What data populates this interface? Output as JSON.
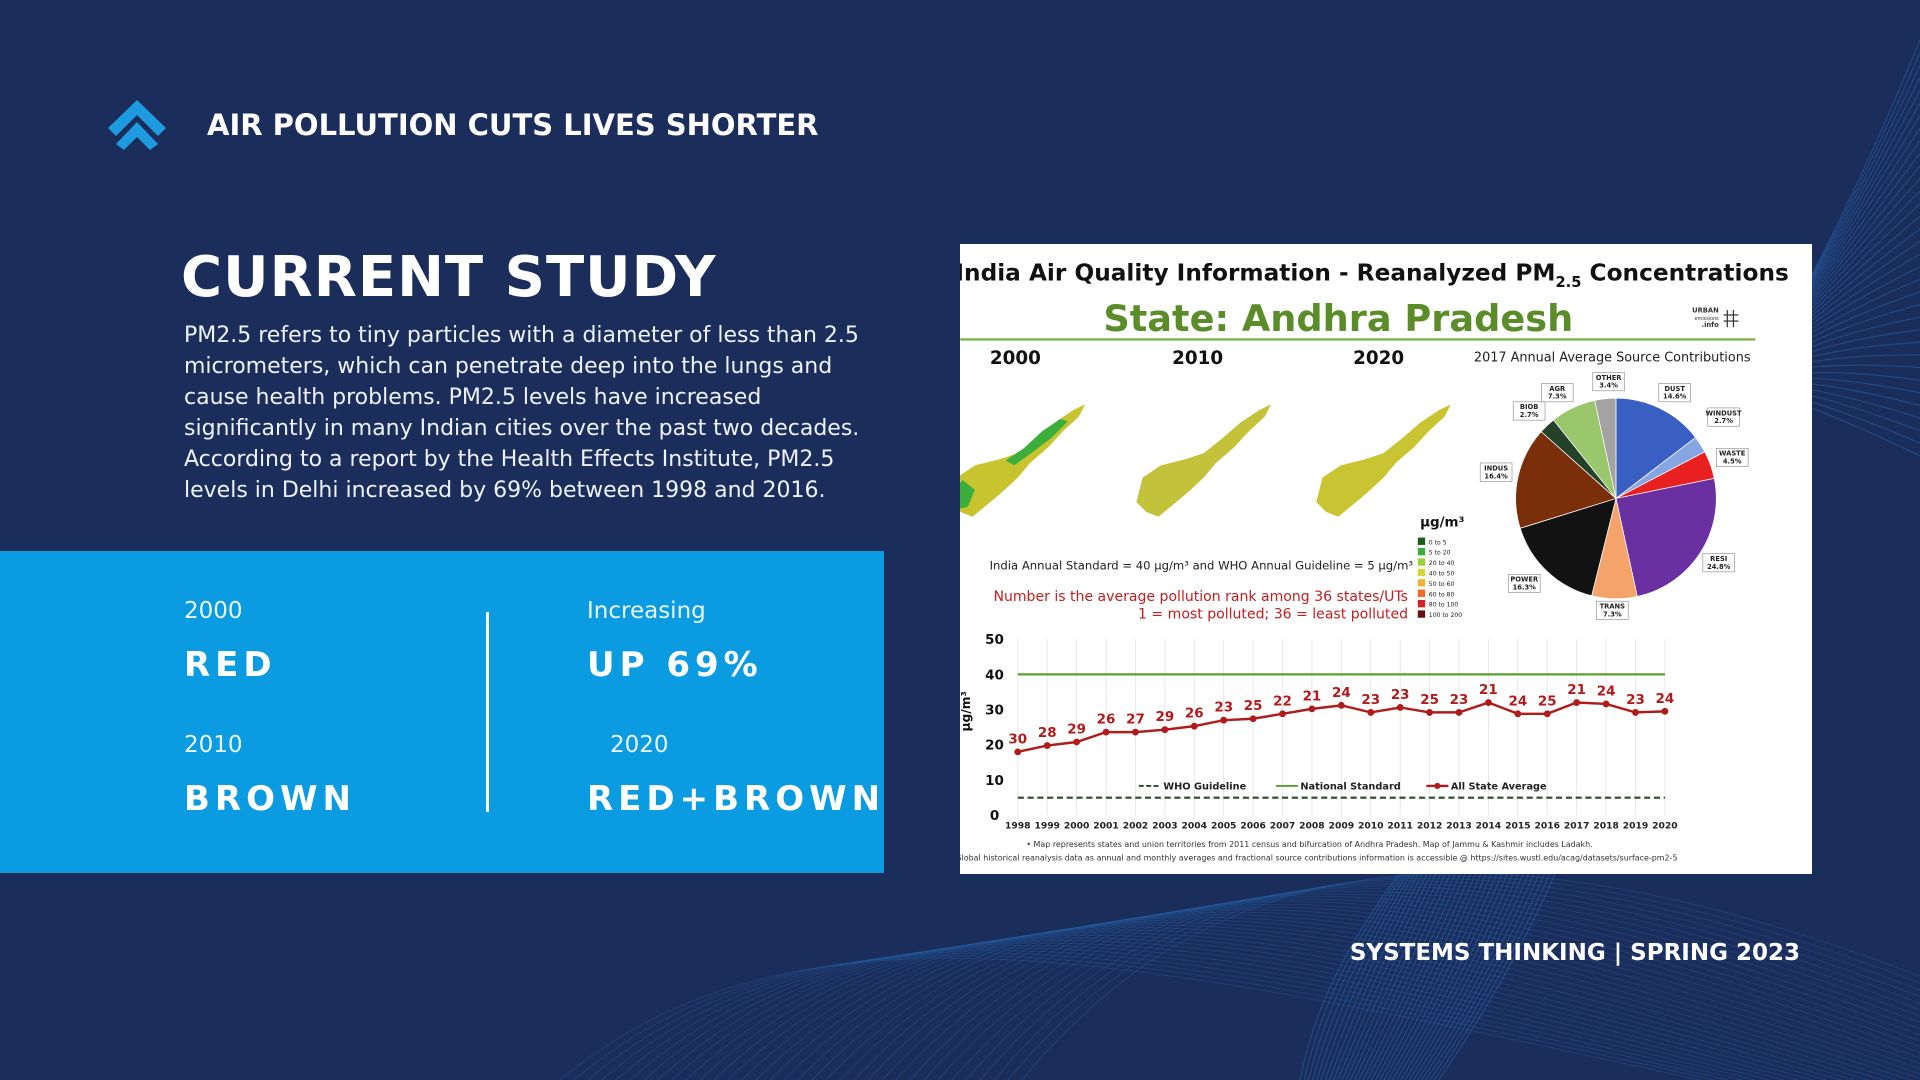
{
  "header": {
    "title": "AIR POLLUTION CUTS LIVES SHORTER"
  },
  "study": {
    "title": "CURRENT STUDY",
    "body_lines": [
      "PM2.5 refers to tiny particles with a diameter of less than 2.5",
      "micrometers, which can penetrate deep into the lungs and",
      "cause health problems. PM2.5 levels have increased",
      "significantly in many Indian cities over the past two decades.",
      "According to a report by the Health Effects Institute, PM2.5",
      "levels in Delhi increased by 69% between 1998 and 2016."
    ]
  },
  "stats": [
    {
      "label": "2000",
      "value": "RED"
    },
    {
      "label": "Increasing",
      "value": "UP 69%"
    },
    {
      "label": "2010",
      "value": "BROWN"
    },
    {
      "label": "2020",
      "value": "RED+BROWN"
    }
  ],
  "figure": {
    "title_pre": "India Air Quality Information - Reanalyzed PM",
    "title_sub": "2.5",
    "title_post": " Concentrations",
    "state": "State: Andhra Pradesh",
    "logo": [
      "URBAN",
      "emissions",
      ".info"
    ],
    "map_years": [
      "2000",
      "2010",
      "2020"
    ],
    "map_legend": {
      "title": "µg/m³",
      "bins": [
        "0 to 5",
        "5 to 20",
        "20 to 40",
        "40 to 50",
        "50 to 60",
        "60 to 80",
        "80 to 100",
        "100 to 200"
      ],
      "colors": [
        "#1f5a1f",
        "#3cae3c",
        "#9ccf3c",
        "#d6d63a",
        "#f2b233",
        "#f06a23",
        "#d61f1f",
        "#6b1010"
      ]
    },
    "standard_note": "India Annual Standard = 40 µg/m³ and WHO Annual Guideline = 5 µg/m³",
    "rank_note": [
      "Number is the average pollution rank among 36 states/UTs",
      "1 = most polluted; 36 = least polluted"
    ],
    "footnotes": [
      "•  Map represents states and union territories from 2011 census and bifurcation of Andhra Pradesh. Map of Jammu & Kashmir includes Ladakh.",
      "Global historical reanalysis data as annual and monthly averages and fractional source contributions information is accessible @ https://sites.wustl.edu/acag/datasets/surface-pm2-5"
    ]
  },
  "chart_data": [
    {
      "type": "pie",
      "title": "2017 Annual Average Source Contributions",
      "categories": [
        "DUST",
        "WINDUST",
        "WASTE",
        "RESI",
        "TRANS",
        "POWER",
        "INDUS",
        "BIOB",
        "AGR",
        "OTHER"
      ],
      "values": [
        14.6,
        2.7,
        4.5,
        24.8,
        7.3,
        16.3,
        16.4,
        2.7,
        7.3,
        3.4
      ],
      "value_labels": [
        "14.6%",
        "2.7%",
        "4.5%",
        "24.8%",
        "7.3%",
        "16.3%",
        "16.4%",
        "2.7%",
        "7.3%",
        "3.4%"
      ],
      "colors": [
        "#3a5fc2",
        "#85a6e3",
        "#e8201f",
        "#6a2fa0",
        "#f4a46a",
        "#121212",
        "#7a2e0a",
        "#24412a",
        "#9ac66c",
        "#a3a3a3"
      ]
    },
    {
      "type": "line",
      "ylabel": "µg/m³",
      "x": [
        1998,
        1999,
        2000,
        2001,
        2002,
        2003,
        2004,
        2005,
        2006,
        2007,
        2008,
        2009,
        2010,
        2011,
        2012,
        2013,
        2014,
        2015,
        2016,
        2017,
        2018,
        2019,
        2020
      ],
      "xlim": [
        1998,
        2020
      ],
      "xticks": [
        1998,
        1999,
        2000,
        2001,
        2002,
        2003,
        2004,
        2005,
        2006,
        2007,
        2008,
        2009,
        2010,
        2011,
        2012,
        2013,
        2014,
        2015,
        2016,
        2017,
        2018,
        2019,
        2020
      ],
      "ylim": [
        0,
        50
      ],
      "yticks": [
        0,
        10,
        20,
        30,
        40,
        50
      ],
      "series": [
        {
          "name": "All State Average",
          "color": "#b01c1c",
          "values": [
            18,
            19.8,
            20.8,
            23.6,
            23.6,
            24.3,
            25.3,
            27,
            27.4,
            28.8,
            30.2,
            31.2,
            29.2,
            30.6,
            29.2,
            29.2,
            32,
            28.8,
            28.8,
            32,
            31.6,
            29.2,
            29.5
          ],
          "ranks": [
            30,
            28,
            29,
            26,
            27,
            29,
            26,
            23,
            25,
            22,
            21,
            24,
            23,
            23,
            25,
            23,
            21,
            24,
            25,
            21,
            24,
            23,
            24
          ]
        }
      ],
      "reference_lines": [
        {
          "name": "WHO Guideline",
          "value": 5,
          "color": "#2a4a2a",
          "dashed": true
        },
        {
          "name": "National Standard",
          "value": 40,
          "color": "#5aa02c",
          "dashed": false
        }
      ]
    }
  ],
  "footer": {
    "text": "SYSTEMS THINKING |  SPRING 2023"
  }
}
